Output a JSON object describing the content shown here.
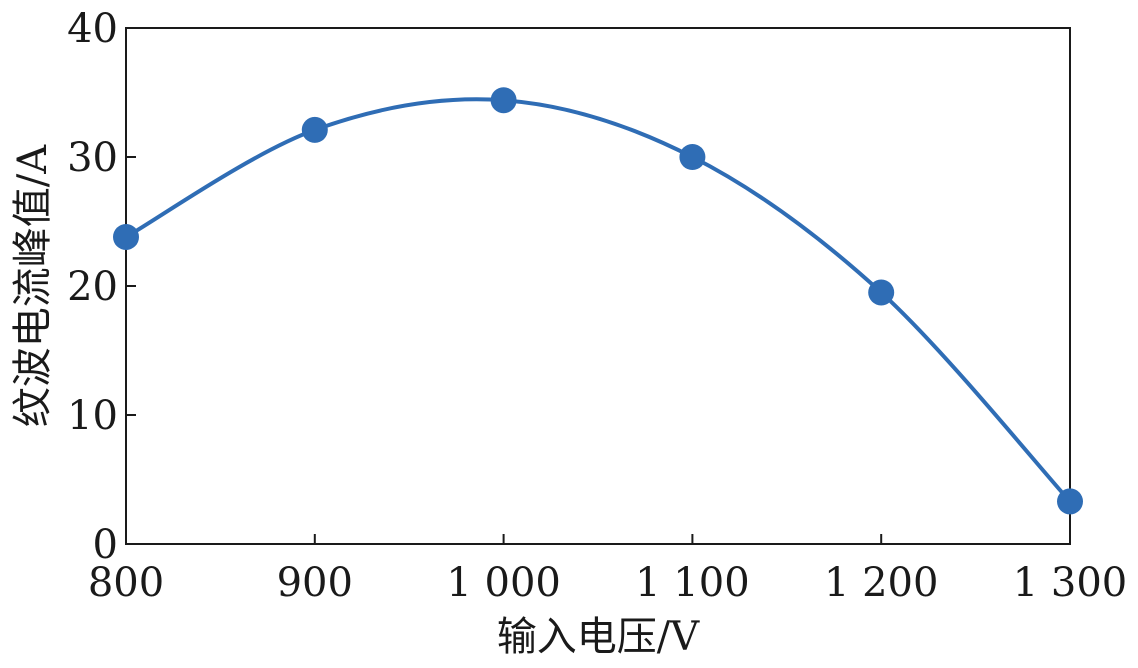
{
  "chart_data": {
    "type": "line",
    "xlabel": "输入电压/V",
    "ylabel": "纹波电流峰值/A",
    "xlim": [
      800,
      1300
    ],
    "ylim": [
      0,
      40
    ],
    "x_ticks": [
      800,
      900,
      1000,
      1100,
      1200,
      1300
    ],
    "x_tick_labels": [
      "800",
      "900",
      "1 000",
      "1 100",
      "1 200",
      "1 300"
    ],
    "y_ticks": [
      0,
      10,
      20,
      30,
      40
    ],
    "y_tick_labels": [
      "0",
      "10",
      "20",
      "30",
      "40"
    ],
    "grid": false,
    "series": [
      {
        "x": [
          800,
          900,
          1000,
          1100,
          1200,
          1300
        ],
        "values": [
          23.8,
          32.1,
          34.4,
          30.0,
          19.5,
          3.3
        ],
        "color": "#2f6db5",
        "marker": "circle",
        "smooth": true
      }
    ]
  }
}
